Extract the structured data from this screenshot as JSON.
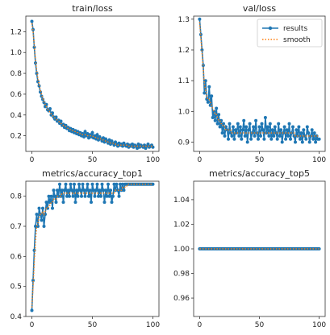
{
  "chart_data": [
    {
      "type": "line",
      "title": "train/loss",
      "xlabel": "",
      "ylabel": "",
      "xlim": [
        -5,
        105
      ],
      "ylim": [
        0.05,
        1.35
      ],
      "xticks": [
        0,
        50,
        100
      ],
      "yticks": [
        0.2,
        0.4,
        0.6,
        0.8,
        1.0,
        1.2
      ],
      "yticklabels": [
        "0.2",
        "0.4",
        "0.6",
        "0.8",
        "1.0",
        "1.2"
      ],
      "series": [
        {
          "name": "results",
          "color": "#1f77b4",
          "style": "line-dots",
          "y": [
            1.3,
            1.22,
            1.05,
            0.9,
            0.8,
            0.72,
            0.68,
            0.62,
            0.58,
            0.55,
            0.52,
            0.48,
            0.5,
            0.45,
            0.44,
            0.46,
            0.4,
            0.42,
            0.38,
            0.36,
            0.38,
            0.34,
            0.35,
            0.32,
            0.34,
            0.3,
            0.31,
            0.28,
            0.3,
            0.27,
            0.28,
            0.25,
            0.27,
            0.24,
            0.26,
            0.23,
            0.25,
            0.22,
            0.24,
            0.21,
            0.23,
            0.2,
            0.22,
            0.19,
            0.24,
            0.2,
            0.22,
            0.18,
            0.21,
            0.19,
            0.23,
            0.18,
            0.2,
            0.17,
            0.21,
            0.16,
            0.19,
            0.17,
            0.15,
            0.18,
            0.14,
            0.17,
            0.15,
            0.13,
            0.16,
            0.12,
            0.15,
            0.13,
            0.11,
            0.14,
            0.12,
            0.1,
            0.13,
            0.11,
            0.12,
            0.1,
            0.13,
            0.11,
            0.1,
            0.12,
            0.09,
            0.11,
            0.1,
            0.12,
            0.09,
            0.11,
            0.1,
            0.08,
            0.12,
            0.09,
            0.11,
            0.1,
            0.09,
            0.11,
            0.08,
            0.1,
            0.12,
            0.09,
            0.1,
            0.11,
            0.09
          ]
        },
        {
          "name": "smooth",
          "color": "#ff7f0e",
          "style": "dotted",
          "y": [
            1.28,
            1.2,
            1.07,
            0.93,
            0.83,
            0.75,
            0.69,
            0.64,
            0.6,
            0.56,
            0.53,
            0.5,
            0.48,
            0.46,
            0.44,
            0.43,
            0.41,
            0.4,
            0.38,
            0.37,
            0.36,
            0.35,
            0.34,
            0.33,
            0.32,
            0.31,
            0.3,
            0.29,
            0.29,
            0.28,
            0.27,
            0.26,
            0.26,
            0.25,
            0.25,
            0.24,
            0.24,
            0.23,
            0.23,
            0.22,
            0.22,
            0.21,
            0.21,
            0.21,
            0.21,
            0.21,
            0.2,
            0.2,
            0.2,
            0.2,
            0.2,
            0.19,
            0.19,
            0.18,
            0.18,
            0.17,
            0.17,
            0.17,
            0.16,
            0.16,
            0.15,
            0.15,
            0.15,
            0.14,
            0.14,
            0.13,
            0.13,
            0.13,
            0.12,
            0.12,
            0.12,
            0.11,
            0.11,
            0.11,
            0.11,
            0.11,
            0.11,
            0.11,
            0.11,
            0.11,
            0.1,
            0.1,
            0.1,
            0.1,
            0.1,
            0.1,
            0.1,
            0.1,
            0.1,
            0.1,
            0.1,
            0.1,
            0.1,
            0.1,
            0.1,
            0.1,
            0.1,
            0.1,
            0.1,
            0.1,
            0.1
          ]
        }
      ]
    },
    {
      "type": "line",
      "title": "val/loss",
      "xlabel": "",
      "ylabel": "",
      "xlim": [
        -5,
        105
      ],
      "ylim": [
        0.87,
        1.31
      ],
      "xticks": [
        0,
        50,
        100
      ],
      "yticks": [
        0.9,
        1.0,
        1.1,
        1.2,
        1.3
      ],
      "yticklabels": [
        "0.9",
        "1.0",
        "1.1",
        "1.2",
        "1.3"
      ],
      "legend": {
        "placement": "top-right",
        "entries": [
          "results",
          "smooth"
        ]
      },
      "series": [
        {
          "name": "results",
          "color": "#1f77b4",
          "style": "line-dots",
          "y": [
            1.3,
            1.25,
            1.2,
            1.15,
            1.06,
            1.1,
            1.04,
            1.03,
            1.08,
            1.02,
            1.05,
            0.98,
            1.0,
            0.97,
            1.01,
            0.96,
            0.99,
            0.95,
            0.97,
            0.93,
            0.96,
            0.92,
            0.95,
            0.94,
            0.91,
            0.96,
            0.93,
            0.92,
            0.95,
            0.91,
            0.94,
            0.93,
            0.96,
            0.92,
            0.95,
            0.91,
            0.94,
            0.97,
            0.92,
            0.95,
            0.9,
            0.94,
            0.96,
            0.91,
            0.93,
            0.95,
            0.92,
            0.97,
            0.93,
            0.91,
            0.95,
            0.92,
            0.96,
            0.94,
            0.91,
            0.98,
            0.93,
            0.95,
            0.92,
            0.96,
            0.91,
            0.94,
            0.92,
            0.95,
            0.93,
            0.91,
            0.96,
            0.92,
            0.94,
            0.9,
            0.93,
            0.95,
            0.91,
            0.94,
            0.92,
            0.96,
            0.91,
            0.93,
            0.95,
            0.92,
            0.9,
            0.94,
            0.92,
            0.95,
            0.91,
            0.93,
            0.9,
            0.94,
            0.92,
            0.91,
            0.95,
            0.93,
            0.9,
            0.92,
            0.94,
            0.91,
            0.93,
            0.9,
            0.92,
            0.91,
            0.91
          ]
        },
        {
          "name": "smooth",
          "color": "#ff7f0e",
          "style": "dotted",
          "y": [
            1.29,
            1.24,
            1.19,
            1.14,
            1.09,
            1.07,
            1.05,
            1.04,
            1.04,
            1.03,
            1.02,
            1.01,
            1.0,
            0.99,
            0.99,
            0.98,
            0.97,
            0.97,
            0.96,
            0.96,
            0.95,
            0.95,
            0.94,
            0.94,
            0.94,
            0.94,
            0.94,
            0.93,
            0.93,
            0.93,
            0.93,
            0.93,
            0.93,
            0.93,
            0.93,
            0.93,
            0.93,
            0.93,
            0.93,
            0.93,
            0.93,
            0.93,
            0.93,
            0.93,
            0.93,
            0.93,
            0.93,
            0.93,
            0.93,
            0.93,
            0.93,
            0.93,
            0.93,
            0.93,
            0.93,
            0.93,
            0.93,
            0.93,
            0.93,
            0.93,
            0.93,
            0.93,
            0.93,
            0.93,
            0.93,
            0.93,
            0.93,
            0.93,
            0.93,
            0.93,
            0.93,
            0.93,
            0.93,
            0.93,
            0.93,
            0.93,
            0.93,
            0.93,
            0.93,
            0.93,
            0.92,
            0.92,
            0.92,
            0.92,
            0.92,
            0.92,
            0.92,
            0.92,
            0.92,
            0.92,
            0.92,
            0.92,
            0.92,
            0.92,
            0.92,
            0.92,
            0.92,
            0.92,
            0.92,
            0.92,
            0.92
          ]
        }
      ]
    },
    {
      "type": "line",
      "title": "metrics/accuracy_top1",
      "xlabel": "",
      "ylabel": "",
      "xlim": [
        -5,
        105
      ],
      "ylim": [
        0.4,
        0.85
      ],
      "xticks": [
        0,
        50,
        100
      ],
      "yticks": [
        0.4,
        0.5,
        0.6,
        0.7,
        0.8
      ],
      "yticklabels": [
        "0.4",
        "0.5",
        "0.6",
        "0.7",
        "0.8"
      ],
      "series": [
        {
          "name": "results",
          "color": "#1f77b4",
          "style": "line-dots",
          "y": [
            0.42,
            0.52,
            0.62,
            0.7,
            0.74,
            0.7,
            0.76,
            0.74,
            0.72,
            0.76,
            0.7,
            0.74,
            0.78,
            0.76,
            0.8,
            0.78,
            0.8,
            0.76,
            0.82,
            0.8,
            0.78,
            0.82,
            0.8,
            0.84,
            0.8,
            0.82,
            0.78,
            0.82,
            0.84,
            0.8,
            0.82,
            0.8,
            0.84,
            0.82,
            0.8,
            0.84,
            0.78,
            0.82,
            0.8,
            0.84,
            0.82,
            0.8,
            0.84,
            0.82,
            0.8,
            0.82,
            0.84,
            0.8,
            0.82,
            0.78,
            0.84,
            0.82,
            0.8,
            0.82,
            0.84,
            0.8,
            0.82,
            0.8,
            0.84,
            0.82,
            0.78,
            0.82,
            0.8,
            0.84,
            0.8,
            0.82,
            0.78,
            0.8,
            0.84,
            0.82,
            0.84,
            0.82,
            0.8,
            0.84,
            0.82,
            0.84,
            0.82,
            0.84,
            0.84,
            0.84,
            0.84,
            0.84,
            0.84,
            0.84,
            0.84,
            0.84,
            0.84,
            0.84,
            0.84,
            0.84,
            0.84,
            0.84,
            0.84,
            0.84,
            0.84,
            0.84,
            0.84,
            0.84,
            0.84,
            0.84,
            0.84
          ]
        },
        {
          "name": "smooth",
          "color": "#ff7f0e",
          "style": "dotted",
          "y": [
            0.43,
            0.5,
            0.58,
            0.65,
            0.7,
            0.71,
            0.73,
            0.74,
            0.74,
            0.75,
            0.74,
            0.75,
            0.76,
            0.76,
            0.77,
            0.77,
            0.78,
            0.78,
            0.79,
            0.79,
            0.79,
            0.8,
            0.8,
            0.8,
            0.8,
            0.81,
            0.81,
            0.81,
            0.81,
            0.81,
            0.81,
            0.81,
            0.81,
            0.81,
            0.81,
            0.81,
            0.81,
            0.81,
            0.81,
            0.81,
            0.81,
            0.81,
            0.81,
            0.81,
            0.81,
            0.81,
            0.81,
            0.81,
            0.81,
            0.81,
            0.81,
            0.81,
            0.81,
            0.81,
            0.81,
            0.81,
            0.81,
            0.81,
            0.81,
            0.81,
            0.81,
            0.81,
            0.81,
            0.81,
            0.81,
            0.81,
            0.81,
            0.81,
            0.81,
            0.82,
            0.82,
            0.82,
            0.82,
            0.82,
            0.82,
            0.83,
            0.83,
            0.83,
            0.83,
            0.84,
            0.84,
            0.84,
            0.84,
            0.84,
            0.84,
            0.84,
            0.84,
            0.84,
            0.84,
            0.84,
            0.84,
            0.84,
            0.84,
            0.84,
            0.84,
            0.84,
            0.84,
            0.84,
            0.84,
            0.84,
            0.84
          ]
        }
      ]
    },
    {
      "type": "line",
      "title": "metrics/accuracy_top5",
      "xlabel": "",
      "ylabel": "",
      "xlim": [
        -5,
        105
      ],
      "ylim": [
        0.945,
        1.055
      ],
      "xticks": [
        0,
        50,
        100
      ],
      "yticks": [
        0.96,
        0.98,
        1.0,
        1.02,
        1.04
      ],
      "yticklabels": [
        "0.96",
        "0.98",
        "1.00",
        "1.02",
        "1.04"
      ],
      "series": [
        {
          "name": "results",
          "color": "#1f77b4",
          "style": "line-dots",
          "constant": 1.0,
          "count": 101
        },
        {
          "name": "smooth",
          "color": "#ff7f0e",
          "style": "dotted",
          "constant": 1.0,
          "count": 101
        }
      ]
    }
  ]
}
